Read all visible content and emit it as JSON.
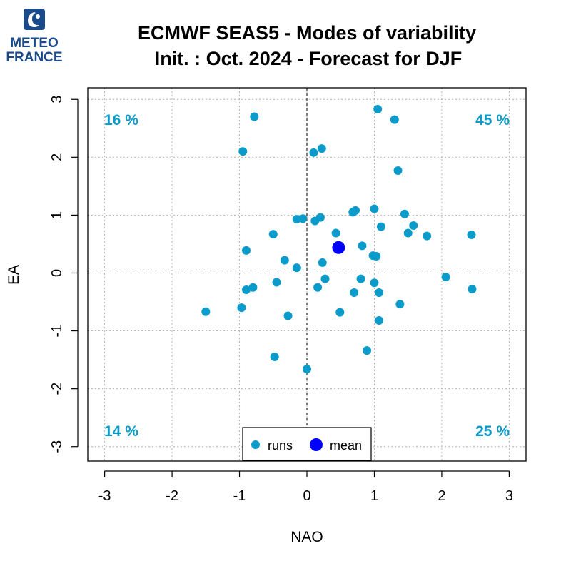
{
  "logo": {
    "line1": "METEO",
    "line2": "FRANCE",
    "color": "#1a4a8a"
  },
  "chart_data": {
    "type": "scatter",
    "title": "ECMWF SEAS5 - Modes of variability",
    "subtitle": "Init. : Oct. 2024 - Forecast for DJF",
    "xlabel": "NAO",
    "ylabel": "EA",
    "xlim": [
      -3.25,
      3.25
    ],
    "ylim": [
      -3.25,
      3.2
    ],
    "xticks": [
      -3,
      -2,
      -1,
      0,
      1,
      2,
      3
    ],
    "yticks": [
      -3,
      -2,
      -1,
      0,
      1,
      2,
      3
    ],
    "grid": true,
    "runs_color": "#0b9bcb",
    "mean_color": "#0000ff",
    "quadrant_color": "#0b9bcb",
    "quadrants": {
      "top_left": "16 %",
      "top_right": "45 %",
      "bottom_left": "14 %",
      "bottom_right": "25 %"
    },
    "legend": {
      "position": "bottom-center",
      "runs_label": "runs",
      "mean_label": "mean"
    },
    "mean": {
      "x": 0.47,
      "y": 0.44
    },
    "runs": [
      {
        "x": -0.78,
        "y": 2.7
      },
      {
        "x": 1.05,
        "y": 2.83
      },
      {
        "x": 1.3,
        "y": 2.65
      },
      {
        "x": -0.95,
        "y": 2.1
      },
      {
        "x": 0.1,
        "y": 2.08
      },
      {
        "x": 0.22,
        "y": 2.15
      },
      {
        "x": 1.35,
        "y": 1.77
      },
      {
        "x": 0.68,
        "y": 1.05
      },
      {
        "x": 0.72,
        "y": 1.08
      },
      {
        "x": 1.0,
        "y": 1.11
      },
      {
        "x": 1.45,
        "y": 1.02
      },
      {
        "x": -0.15,
        "y": 0.93
      },
      {
        "x": -0.06,
        "y": 0.94
      },
      {
        "x": 0.12,
        "y": 0.9
      },
      {
        "x": 0.2,
        "y": 0.96
      },
      {
        "x": 1.58,
        "y": 0.82
      },
      {
        "x": 1.1,
        "y": 0.8
      },
      {
        "x": -0.5,
        "y": 0.67
      },
      {
        "x": 0.43,
        "y": 0.69
      },
      {
        "x": 1.5,
        "y": 0.69
      },
      {
        "x": 1.78,
        "y": 0.64
      },
      {
        "x": 2.44,
        "y": 0.66
      },
      {
        "x": -0.9,
        "y": 0.39
      },
      {
        "x": 0.82,
        "y": 0.47
      },
      {
        "x": 0.98,
        "y": 0.3
      },
      {
        "x": 1.03,
        "y": 0.29
      },
      {
        "x": -0.33,
        "y": 0.22
      },
      {
        "x": 0.23,
        "y": 0.18
      },
      {
        "x": -0.15,
        "y": 0.09
      },
      {
        "x": 2.06,
        "y": -0.07
      },
      {
        "x": 0.27,
        "y": -0.1
      },
      {
        "x": 0.8,
        "y": -0.1
      },
      {
        "x": -0.45,
        "y": -0.16
      },
      {
        "x": 1.0,
        "y": -0.17
      },
      {
        "x": -0.8,
        "y": -0.25
      },
      {
        "x": -0.9,
        "y": -0.29
      },
      {
        "x": 0.16,
        "y": -0.25
      },
      {
        "x": 0.7,
        "y": -0.34
      },
      {
        "x": 1.07,
        "y": -0.34
      },
      {
        "x": 2.45,
        "y": -0.28
      },
      {
        "x": 1.38,
        "y": -0.54
      },
      {
        "x": -0.97,
        "y": -0.6
      },
      {
        "x": -1.5,
        "y": -0.67
      },
      {
        "x": 0.49,
        "y": -0.68
      },
      {
        "x": -0.28,
        "y": -0.74
      },
      {
        "x": 1.07,
        "y": -0.82
      },
      {
        "x": 0.89,
        "y": -1.34
      },
      {
        "x": -0.48,
        "y": -1.45
      },
      {
        "x": 0.0,
        "y": -1.66
      }
    ]
  }
}
